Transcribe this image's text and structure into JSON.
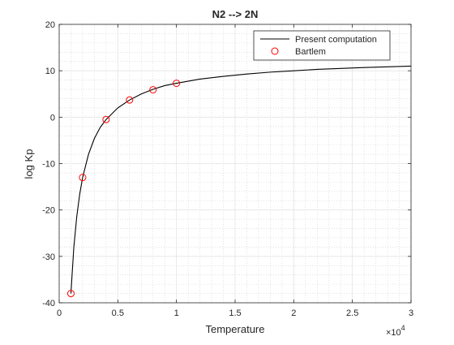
{
  "chart_data": {
    "type": "line",
    "title": "N2 --> 2N",
    "xlabel": "Temperature",
    "ylabel": "log Kp",
    "xlim": [
      0,
      30000
    ],
    "ylim": [
      -40,
      20
    ],
    "x_scale_exponent_label": "×10",
    "x_scale_exponent": "4",
    "x_ticks": [
      0,
      5000,
      10000,
      15000,
      20000,
      25000,
      30000
    ],
    "x_tick_labels": [
      "0",
      "0.5",
      "1",
      "1.5",
      "2",
      "2.5",
      "3"
    ],
    "y_ticks": [
      -40,
      -30,
      -20,
      -10,
      0,
      10,
      20
    ],
    "y_tick_labels": [
      "-40",
      "-30",
      "-20",
      "-10",
      "0",
      "10",
      "20"
    ],
    "grid": "major solid, minor dotted",
    "legend_position": "top-right",
    "series": [
      {
        "name": "Present computation",
        "style": "line",
        "color": "#000000",
        "x": [
          1000,
          1250,
          1500,
          1750,
          2000,
          2500,
          3000,
          3500,
          4000,
          5000,
          6000,
          7000,
          8000,
          9000,
          10000,
          12000,
          14000,
          16000,
          18000,
          20000,
          22000,
          24000,
          26000,
          28000,
          30000
        ],
        "y": [
          -38.0,
          -28.0,
          -21.4,
          -16.6,
          -13.0,
          -8.0,
          -4.6,
          -2.2,
          -0.5,
          2.0,
          3.7,
          5.0,
          6.0,
          6.8,
          7.3,
          8.2,
          8.8,
          9.3,
          9.7,
          10.0,
          10.3,
          10.5,
          10.7,
          10.85,
          11.0
        ]
      },
      {
        "name": "Bartlem",
        "style": "marker",
        "color": "#ff0000",
        "x": [
          1000,
          2000,
          4000,
          6000,
          8000,
          10000
        ],
        "y": [
          -38.0,
          -13.0,
          -0.5,
          3.7,
          5.9,
          7.3
        ]
      }
    ]
  }
}
